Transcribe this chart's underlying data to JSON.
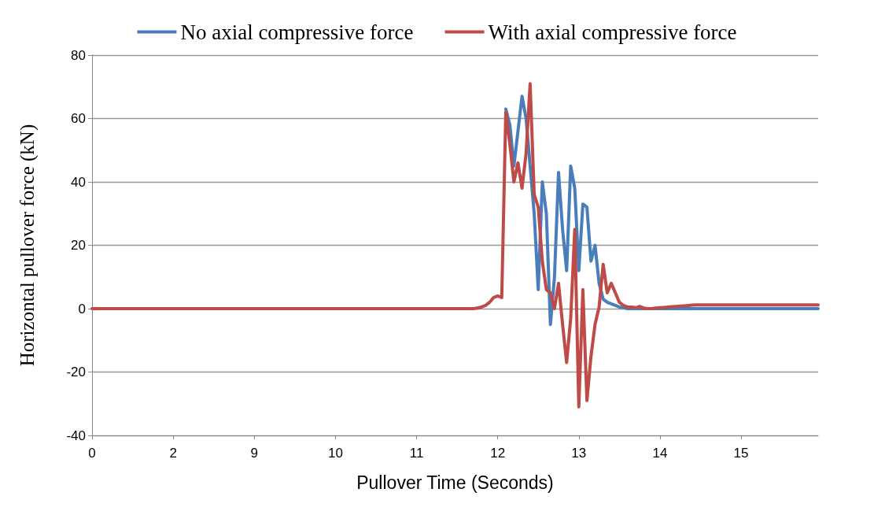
{
  "chart_data": {
    "type": "line",
    "xlabel": "Pullover Time (Seconds)",
    "ylabel": "Horizontal pullover force (kN)",
    "categories": [
      "0",
      null,
      null,
      null,
      null,
      null,
      null,
      null,
      null,
      null,
      null,
      null,
      null,
      null,
      null,
      null,
      null,
      null,
      null,
      null,
      "2",
      null,
      null,
      null,
      null,
      null,
      null,
      null,
      null,
      null,
      null,
      null,
      null,
      null,
      null,
      null,
      null,
      null,
      null,
      null,
      "9",
      null,
      null,
      null,
      null,
      null,
      null,
      null,
      null,
      null,
      null,
      null,
      null,
      null,
      null,
      null,
      null,
      null,
      null,
      null,
      "10",
      null,
      null,
      null,
      null,
      null,
      null,
      null,
      null,
      null,
      null,
      null,
      null,
      null,
      null,
      null,
      null,
      null,
      null,
      null,
      "11",
      null,
      null,
      null,
      null,
      null,
      null,
      null,
      null,
      null,
      null,
      null,
      null,
      null,
      null,
      null,
      null,
      null,
      null,
      null,
      "12",
      null,
      null,
      null,
      null,
      null,
      null,
      null,
      null,
      null,
      null,
      null,
      null,
      null,
      null,
      null,
      null,
      null,
      null,
      null,
      "13",
      null,
      null,
      null,
      null,
      null,
      null,
      null,
      null,
      null,
      null,
      null,
      null,
      null,
      null,
      null,
      null,
      null,
      null,
      null,
      "14",
      null,
      null,
      null,
      null,
      null,
      null,
      null,
      null,
      null,
      null,
      null,
      null,
      null,
      null,
      null,
      null,
      null,
      null,
      null,
      "15",
      null,
      null,
      null,
      null,
      null,
      null,
      null,
      null,
      null,
      null,
      null,
      null,
      null,
      null,
      null,
      null,
      null,
      null,
      null
    ],
    "series": [
      {
        "name": "No axial compressive force",
        "color": "#4a7ebb",
        "values": [
          null,
          null,
          null,
          null,
          null,
          null,
          null,
          null,
          null,
          null,
          null,
          null,
          null,
          null,
          null,
          null,
          null,
          null,
          null,
          null,
          null,
          null,
          null,
          null,
          null,
          null,
          null,
          null,
          null,
          null,
          null,
          null,
          null,
          null,
          null,
          null,
          null,
          null,
          null,
          null,
          null,
          null,
          null,
          null,
          null,
          null,
          null,
          null,
          null,
          null,
          null,
          null,
          null,
          null,
          null,
          null,
          null,
          null,
          null,
          null,
          null,
          null,
          null,
          null,
          null,
          null,
          null,
          null,
          null,
          null,
          null,
          null,
          null,
          null,
          null,
          null,
          null,
          null,
          null,
          null,
          null,
          null,
          null,
          null,
          null,
          null,
          null,
          null,
          null,
          null,
          null,
          null,
          null,
          null,
          null,
          null,
          null,
          null,
          null,
          null,
          null,
          null,
          63,
          58,
          45,
          56,
          67,
          60,
          45,
          30,
          6,
          40,
          30,
          -5,
          10,
          43,
          25,
          12,
          45,
          38,
          12,
          33,
          32,
          15,
          20,
          8,
          3,
          2,
          1.5,
          1,
          0.5,
          0.3,
          0,
          0,
          0,
          0,
          0,
          0,
          0,
          0,
          0,
          0,
          0,
          0,
          0,
          0,
          0,
          0,
          0,
          0,
          0,
          0,
          0,
          0,
          0,
          0,
          0,
          0,
          0,
          0,
          0,
          0,
          0,
          0,
          0,
          0,
          0,
          0,
          0,
          0,
          0,
          0,
          0,
          0,
          0,
          0,
          0,
          0,
          0,
          0
        ]
      },
      {
        "name": "With axial compressive force",
        "color": "#be4b48",
        "values": [
          0,
          0,
          0,
          0,
          0,
          0,
          0,
          0,
          0,
          0,
          0,
          0,
          0,
          0,
          0,
          0,
          0,
          0,
          0,
          0,
          0,
          0,
          0,
          0,
          0,
          0,
          0,
          0,
          0,
          0,
          0,
          0,
          0,
          0,
          0,
          0,
          0,
          0,
          0,
          0,
          0,
          0,
          0,
          0,
          0,
          0,
          0,
          0,
          0,
          0,
          0,
          0,
          0,
          0,
          0,
          0,
          0,
          0,
          0,
          0,
          0,
          0,
          0,
          0,
          0,
          0,
          0,
          0,
          0,
          0,
          0,
          0,
          0,
          0,
          0,
          0,
          0,
          0,
          0,
          0,
          0,
          0,
          0,
          0,
          0,
          0,
          0,
          0,
          0,
          0,
          0,
          0,
          0,
          0,
          0,
          0.2,
          0.5,
          1,
          2,
          3.5,
          4,
          3.5,
          62,
          52,
          40,
          46,
          38,
          49,
          71,
          36,
          32,
          15,
          6,
          5,
          0,
          8,
          -5,
          -17,
          -3,
          25,
          -31,
          6,
          -29,
          -15,
          -5,
          0.5,
          14,
          5,
          8,
          5,
          2,
          1,
          0.5,
          0.5,
          0.3,
          0.7,
          0.2,
          0,
          0,
          0.2,
          0.3,
          0.4,
          0.5,
          0.6,
          0.7,
          0.8,
          0.9,
          1,
          1.1,
          1.2,
          1.2,
          1.2,
          1.2,
          1.2,
          1.2,
          1.2,
          1.2,
          1.2,
          1.2,
          1.2,
          1.2,
          1.2,
          1.2,
          1.2,
          1.2,
          1.2,
          1.2,
          1.2,
          1.2,
          1.2,
          1.2,
          1.2,
          1.2,
          1.2,
          1.2,
          1.2,
          1.2,
          1.2,
          1.2,
          1.2
        ]
      }
    ],
    "ylim": [
      -40,
      80
    ],
    "yticks": [
      -40,
      -20,
      0,
      20,
      40,
      60,
      80
    ],
    "grid": "y",
    "legend": "top",
    "marker": "none",
    "line_style": "solid"
  }
}
